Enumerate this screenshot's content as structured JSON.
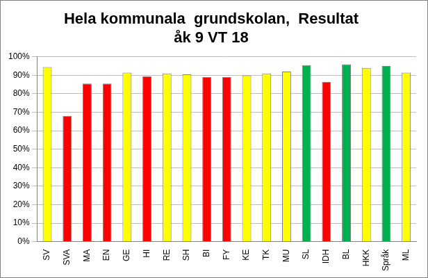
{
  "chart_data": {
    "type": "bar",
    "title": [
      "Hela kommunala  grundskolan,  Resultat",
      "åk 9 VT 18"
    ],
    "categories": [
      "SV",
      "SVA",
      "MA",
      "EN",
      "GE",
      "HI",
      "RE",
      "SH",
      "BI",
      "FY",
      "KE",
      "TK",
      "MU",
      "SL",
      "IDH",
      "BL",
      "HKK",
      "Språk",
      "ML"
    ],
    "values": [
      94.5,
      68,
      85.5,
      85.5,
      91.5,
      89.5,
      91,
      90.5,
      89,
      89,
      90,
      91,
      92,
      95.5,
      86.5,
      96,
      94,
      95,
      91.5
    ],
    "colors": [
      "#ffff00",
      "#ff0000",
      "#ff0000",
      "#ff0000",
      "#ffff00",
      "#ff0000",
      "#ffff00",
      "#ffff00",
      "#ff0000",
      "#ff0000",
      "#ffff00",
      "#ffff00",
      "#ffff00",
      "#00b050",
      "#ff0000",
      "#00b050",
      "#ffff00",
      "#00b050",
      "#ffff00"
    ],
    "ylim": [
      0,
      100
    ],
    "yticks": [
      {
        "value": 0,
        "label": "0%"
      },
      {
        "value": 10,
        "label": "10%"
      },
      {
        "value": 20,
        "label": "20%"
      },
      {
        "value": 30,
        "label": "30%"
      },
      {
        "value": 40,
        "label": "40%"
      },
      {
        "value": 50,
        "label": "50%"
      },
      {
        "value": 60,
        "label": "60%"
      },
      {
        "value": 70,
        "label": "70%"
      },
      {
        "value": 80,
        "label": "80%"
      },
      {
        "value": 90,
        "label": "90%"
      },
      {
        "value": 100,
        "label": "100%"
      }
    ],
    "grid": true
  }
}
